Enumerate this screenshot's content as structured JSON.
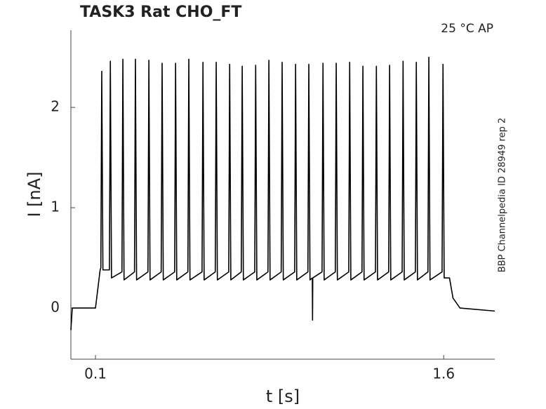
{
  "chart_data": {
    "type": "line",
    "title": "TASK3  Rat  CHO_FT",
    "annotation": "25 °C  AP",
    "side_note": "BBP Channelpedia ID 28949 rep 2",
    "xlabel": "t [s]",
    "ylabel": "I [nA]",
    "xlim": [
      -0.006,
      1.82
    ],
    "ylim": [
      -0.51,
      2.77
    ],
    "xticks": [
      0.1,
      1.6
    ],
    "yticks": [
      0,
      1,
      2
    ],
    "grid": false,
    "x": [
      -0.006,
      0.0,
      0.1,
      0.12,
      0.123,
      0.127,
      0.132,
      0.16,
      0.164,
      0.169,
      0.214,
      0.218,
      0.223,
      0.268,
      0.272,
      0.277,
      0.326,
      0.33,
      0.335,
      0.383,
      0.387,
      0.392,
      0.441,
      0.445,
      0.45,
      0.498,
      0.502,
      0.507,
      0.559,
      0.563,
      0.568,
      0.616,
      0.62,
      0.625,
      0.674,
      0.678,
      0.683,
      0.728,
      0.732,
      0.737,
      0.786,
      0.79,
      0.795,
      0.843,
      0.847,
      0.852,
      0.9,
      0.904,
      0.909,
      0.958,
      0.962,
      0.967,
      1.015,
      1.019,
      1.024,
      1.034,
      1.035,
      1.036,
      1.076,
      1.08,
      1.085,
      1.133,
      1.137,
      1.142,
      1.191,
      1.195,
      1.2,
      1.248,
      1.252,
      1.257,
      1.306,
      1.31,
      1.315,
      1.363,
      1.367,
      1.372,
      1.421,
      1.425,
      1.43,
      1.478,
      1.482,
      1.487,
      1.532,
      1.536,
      1.541,
      1.593,
      1.597,
      1.602,
      1.625,
      1.64,
      1.67,
      1.82
    ],
    "series": [
      {
        "color": "#000000",
        "values": [
          -0.22,
          0,
          0,
          0.38,
          0.4,
          2.36,
          0.38,
          0.38,
          2.46,
          0.3,
          0.36,
          2.48,
          0.28,
          0.36,
          2.48,
          0.28,
          0.36,
          2.47,
          0.28,
          0.36,
          2.44,
          0.28,
          0.36,
          2.44,
          0.28,
          0.36,
          2.48,
          0.28,
          0.36,
          2.45,
          0.28,
          0.36,
          2.45,
          0.28,
          0.36,
          2.43,
          0.28,
          0.36,
          2.41,
          0.28,
          0.36,
          2.42,
          0.28,
          0.36,
          2.47,
          0.28,
          0.36,
          2.45,
          0.28,
          0.36,
          2.43,
          0.28,
          0.36,
          2.43,
          0.28,
          0.3,
          -0.12,
          0.3,
          0.36,
          2.44,
          0.28,
          0.36,
          2.44,
          0.28,
          0.36,
          2.45,
          0.28,
          0.36,
          2.41,
          0.28,
          0.36,
          2.41,
          0.28,
          0.36,
          2.42,
          0.28,
          0.36,
          2.46,
          0.28,
          0.36,
          2.45,
          0.28,
          0.36,
          2.5,
          0.28,
          0.36,
          2.43,
          0.3,
          0.3,
          0.1,
          0.0,
          -0.03
        ]
      }
    ]
  }
}
